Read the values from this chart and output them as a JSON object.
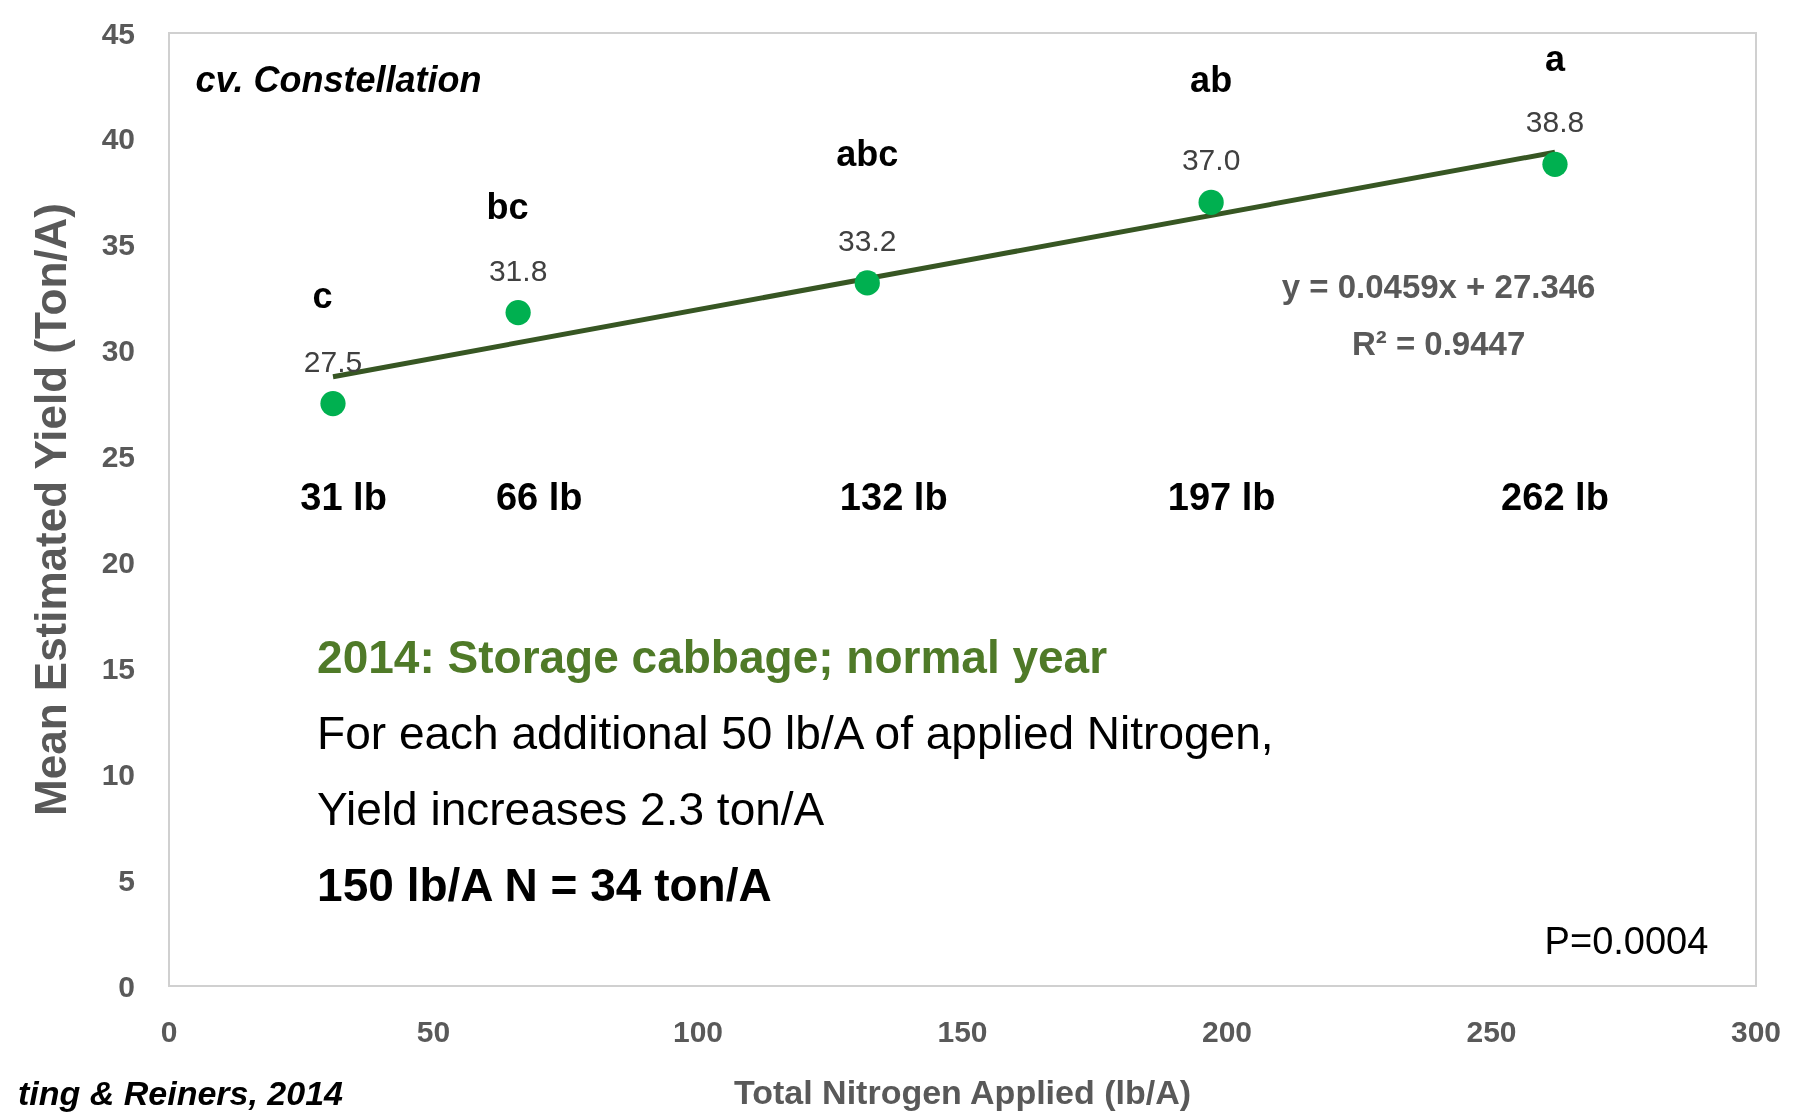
{
  "chart_data": {
    "type": "scatter",
    "xlabel": "Total Nitrogen Applied (lb/A)",
    "ylabel": "Mean Estimated Yield (Ton/A)",
    "xlim": [
      0,
      300
    ],
    "xticks": [
      0,
      50,
      100,
      150,
      200,
      250,
      300
    ],
    "ylim": [
      0,
      45
    ],
    "yticks": [
      0,
      5,
      10,
      15,
      20,
      25,
      30,
      35,
      40,
      45
    ],
    "grid": false,
    "series": [
      {
        "marker": "circle",
        "color": "#00b050",
        "x": [
          31,
          66,
          132,
          197,
          262
        ],
        "values": [
          27.5,
          31.8,
          33.2,
          37.0,
          38.8
        ],
        "value_labels": [
          "27.5",
          "31.8",
          "33.2",
          "37.0",
          "38.8"
        ]
      },
      {
        "type": "line",
        "marker": "none",
        "color": "#375623",
        "x": [
          31,
          262
        ],
        "values": [
          28.77,
          39.37
        ]
      }
    ],
    "annotations": [
      "cv. Constellation",
      "c",
      "bc",
      "abc",
      "ab",
      "a",
      "y = 0.0459x + 27.346",
      "R² = 0.9447",
      "31 lb",
      "66 lb",
      "132 lb",
      "197 lb",
      "262 lb",
      "2014: Storage cabbage; normal year",
      "For each additional 50 lb/A of applied Nitrogen,",
      "Yield increases 2.3 ton/A",
      "150 lb/A N = 34 ton/A",
      "P=0.0004",
      "ting & Reiners, 2014"
    ]
  }
}
